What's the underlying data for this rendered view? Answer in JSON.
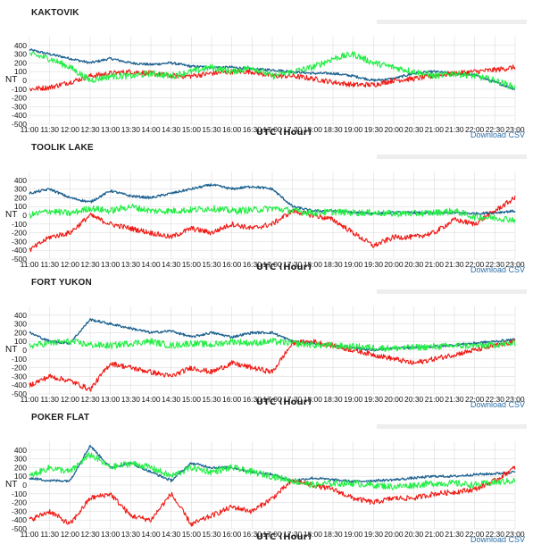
{
  "common": {
    "x_ticks": [
      "11:00",
      "11:30",
      "12:00",
      "12:30",
      "13:00",
      "13:30",
      "14:00",
      "14:30",
      "15:00",
      "15:30",
      "16:00",
      "16:30",
      "17:00",
      "17:30",
      "18:00",
      "18:30",
      "19:00",
      "19:30",
      "20:00",
      "20:30",
      "21:00",
      "21:30",
      "22:00",
      "22:30",
      "23:00"
    ],
    "y_ticks": [
      400,
      300,
      200,
      100,
      0,
      -100,
      -200,
      -300,
      -400,
      -500
    ],
    "ylabel": "NT",
    "xlabel": "UTC (Hour)",
    "download_label": "Download CSV",
    "colors": {
      "blue": "#1f6391",
      "green": "#22ee44",
      "red": "#f01a14",
      "grid": "#dddddd"
    }
  },
  "chart_data": [
    {
      "type": "line",
      "title": "KAKTOVIK",
      "ylim": [
        -500,
        500
      ],
      "xlim": [
        "11:00",
        "23:00"
      ],
      "grid": true,
      "series": [
        {
          "color": "blue",
          "x": [
            "11:00",
            "11:30",
            "12:00",
            "12:30",
            "13:00",
            "13:30",
            "14:00",
            "14:30",
            "15:00",
            "15:30",
            "16:00",
            "16:30",
            "17:00",
            "17:30",
            "18:00",
            "18:30",
            "19:00",
            "19:30",
            "20:00",
            "20:30",
            "21:00",
            "21:30",
            "22:00",
            "22:30",
            "23:00"
          ],
          "values": [
            350,
            300,
            250,
            200,
            250,
            200,
            180,
            200,
            160,
            150,
            150,
            130,
            120,
            100,
            80,
            80,
            50,
            0,
            20,
            80,
            100,
            80,
            60,
            -20,
            -100
          ]
        },
        {
          "color": "green",
          "x": [
            "11:00",
            "11:30",
            "12:00",
            "12:30",
            "13:00",
            "13:30",
            "14:00",
            "14:30",
            "15:00",
            "15:30",
            "16:00",
            "16:30",
            "17:00",
            "17:30",
            "18:00",
            "18:30",
            "19:00",
            "19:30",
            "20:00",
            "20:30",
            "21:00",
            "21:30",
            "22:00",
            "22:30",
            "23:00"
          ],
          "values": [
            300,
            250,
            150,
            0,
            50,
            50,
            80,
            50,
            100,
            150,
            100,
            150,
            50,
            100,
            150,
            250,
            300,
            200,
            150,
            100,
            50,
            80,
            50,
            0,
            -80
          ]
        },
        {
          "color": "red",
          "x": [
            "11:00",
            "11:30",
            "12:00",
            "12:30",
            "13:00",
            "13:30",
            "14:00",
            "14:30",
            "15:00",
            "15:30",
            "16:00",
            "16:30",
            "17:00",
            "17:30",
            "18:00",
            "18:30",
            "19:00",
            "19:30",
            "20:00",
            "20:30",
            "21:00",
            "21:30",
            "22:00",
            "22:30",
            "23:00"
          ],
          "values": [
            -100,
            -80,
            -20,
            50,
            80,
            100,
            80,
            50,
            50,
            80,
            100,
            100,
            50,
            50,
            20,
            -20,
            -50,
            -50,
            0,
            20,
            50,
            80,
            100,
            120,
            150
          ]
        }
      ]
    },
    {
      "type": "line",
      "title": "TOOLIK LAKE",
      "ylim": [
        -500,
        500
      ],
      "xlim": [
        "11:00",
        "23:00"
      ],
      "grid": true,
      "series": [
        {
          "color": "blue",
          "x": [
            "11:00",
            "11:30",
            "12:00",
            "12:30",
            "13:00",
            "13:30",
            "14:00",
            "14:30",
            "15:00",
            "15:30",
            "16:00",
            "16:30",
            "17:00",
            "17:30",
            "18:00",
            "18:30",
            "19:00",
            "19:30",
            "20:00",
            "20:30",
            "21:00",
            "21:30",
            "22:00",
            "22:30",
            "23:00"
          ],
          "values": [
            250,
            300,
            200,
            150,
            280,
            220,
            200,
            250,
            300,
            350,
            300,
            330,
            300,
            100,
            50,
            50,
            30,
            20,
            30,
            30,
            20,
            30,
            20,
            30,
            50
          ]
        },
        {
          "color": "green",
          "x": [
            "11:00",
            "11:30",
            "12:00",
            "12:30",
            "13:00",
            "13:30",
            "14:00",
            "14:30",
            "15:00",
            "15:30",
            "16:00",
            "16:30",
            "17:00",
            "17:30",
            "18:00",
            "18:30",
            "19:00",
            "19:30",
            "20:00",
            "20:30",
            "21:00",
            "21:30",
            "22:00",
            "22:30",
            "23:00"
          ],
          "values": [
            0,
            50,
            20,
            80,
            50,
            100,
            50,
            50,
            60,
            80,
            50,
            60,
            80,
            50,
            30,
            40,
            30,
            30,
            20,
            20,
            30,
            50,
            -20,
            -30,
            -50
          ]
        },
        {
          "color": "red",
          "x": [
            "11:00",
            "11:30",
            "12:00",
            "12:30",
            "13:00",
            "13:30",
            "14:00",
            "14:30",
            "15:00",
            "15:30",
            "16:00",
            "16:30",
            "17:00",
            "17:30",
            "18:00",
            "18:30",
            "19:00",
            "19:30",
            "20:00",
            "20:30",
            "21:00",
            "21:30",
            "22:00",
            "22:30",
            "23:00"
          ],
          "values": [
            -400,
            -250,
            -200,
            0,
            -100,
            -150,
            -200,
            -250,
            -150,
            -200,
            -100,
            -150,
            -100,
            50,
            0,
            -50,
            -200,
            -350,
            -250,
            -250,
            -200,
            -50,
            -100,
            50,
            200
          ]
        }
      ]
    },
    {
      "type": "line",
      "title": "FORT YUKON",
      "ylim": [
        -500,
        500
      ],
      "xlim": [
        "11:00",
        "23:00"
      ],
      "grid": true,
      "series": [
        {
          "color": "blue",
          "x": [
            "11:00",
            "11:30",
            "12:00",
            "12:30",
            "13:00",
            "13:30",
            "14:00",
            "14:30",
            "15:00",
            "15:30",
            "16:00",
            "16:30",
            "17:00",
            "17:30",
            "18:00",
            "18:30",
            "19:00",
            "19:30",
            "20:00",
            "20:30",
            "21:00",
            "21:30",
            "22:00",
            "22:30",
            "23:00"
          ],
          "values": [
            200,
            100,
            80,
            350,
            300,
            250,
            200,
            220,
            150,
            200,
            150,
            200,
            200,
            100,
            80,
            50,
            30,
            0,
            20,
            30,
            40,
            60,
            80,
            100,
            120
          ]
        },
        {
          "color": "green",
          "x": [
            "11:00",
            "11:30",
            "12:00",
            "12:30",
            "13:00",
            "13:30",
            "14:00",
            "14:30",
            "15:00",
            "15:30",
            "16:00",
            "16:30",
            "17:00",
            "17:30",
            "18:00",
            "18:30",
            "19:00",
            "19:30",
            "20:00",
            "20:30",
            "21:00",
            "21:30",
            "22:00",
            "22:30",
            "23:00"
          ],
          "values": [
            50,
            80,
            100,
            60,
            50,
            80,
            100,
            50,
            80,
            60,
            100,
            80,
            100,
            80,
            60,
            50,
            40,
            30,
            20,
            30,
            40,
            50,
            50,
            60,
            80
          ]
        },
        {
          "color": "red",
          "x": [
            "11:00",
            "11:30",
            "12:00",
            "12:30",
            "13:00",
            "13:30",
            "14:00",
            "14:30",
            "15:00",
            "15:30",
            "16:00",
            "16:30",
            "17:00",
            "17:30",
            "18:00",
            "18:30",
            "19:00",
            "19:30",
            "20:00",
            "20:30",
            "21:00",
            "21:30",
            "22:00",
            "22:30",
            "23:00"
          ],
          "values": [
            -400,
            -300,
            -350,
            -450,
            -150,
            -200,
            -250,
            -300,
            -200,
            -250,
            -150,
            -200,
            -250,
            80,
            100,
            50,
            0,
            -50,
            -100,
            -150,
            -100,
            -50,
            0,
            50,
            100
          ]
        }
      ]
    },
    {
      "type": "line",
      "title": "POKER FLAT",
      "ylim": [
        -500,
        500
      ],
      "xlim": [
        "11:00",
        "23:00"
      ],
      "grid": true,
      "series": [
        {
          "color": "blue",
          "x": [
            "11:00",
            "11:30",
            "12:00",
            "12:30",
            "13:00",
            "13:30",
            "14:00",
            "14:30",
            "15:00",
            "15:30",
            "16:00",
            "16:30",
            "17:00",
            "17:30",
            "18:00",
            "18:30",
            "19:00",
            "19:30",
            "20:00",
            "20:30",
            "21:00",
            "21:30",
            "22:00",
            "22:30",
            "23:00"
          ],
          "values": [
            80,
            50,
            50,
            450,
            200,
            250,
            150,
            50,
            250,
            200,
            200,
            150,
            120,
            50,
            80,
            60,
            40,
            50,
            60,
            80,
            100,
            100,
            120,
            130,
            150
          ]
        },
        {
          "color": "green",
          "x": [
            "11:00",
            "11:30",
            "12:00",
            "12:30",
            "13:00",
            "13:30",
            "14:00",
            "14:30",
            "15:00",
            "15:30",
            "16:00",
            "16:30",
            "17:00",
            "17:30",
            "18:00",
            "18:30",
            "19:00",
            "19:30",
            "20:00",
            "20:30",
            "21:00",
            "21:30",
            "22:00",
            "22:30",
            "23:00"
          ],
          "values": [
            100,
            200,
            150,
            350,
            200,
            250,
            200,
            100,
            200,
            150,
            200,
            150,
            100,
            50,
            0,
            20,
            20,
            0,
            -20,
            0,
            20,
            20,
            0,
            30,
            50
          ]
        },
        {
          "color": "red",
          "x": [
            "11:00",
            "11:30",
            "12:00",
            "12:30",
            "13:00",
            "13:30",
            "14:00",
            "14:30",
            "15:00",
            "15:30",
            "16:00",
            "16:30",
            "17:00",
            "17:30",
            "18:00",
            "18:30",
            "19:00",
            "19:30",
            "20:00",
            "20:30",
            "21:00",
            "21:30",
            "22:00",
            "22:30",
            "23:00"
          ],
          "values": [
            -400,
            -300,
            -450,
            -150,
            -100,
            -350,
            -400,
            -100,
            -450,
            -350,
            -250,
            -300,
            -150,
            50,
            0,
            -50,
            -150,
            -200,
            -150,
            -150,
            -100,
            -80,
            -50,
            50,
            200
          ]
        }
      ]
    }
  ]
}
